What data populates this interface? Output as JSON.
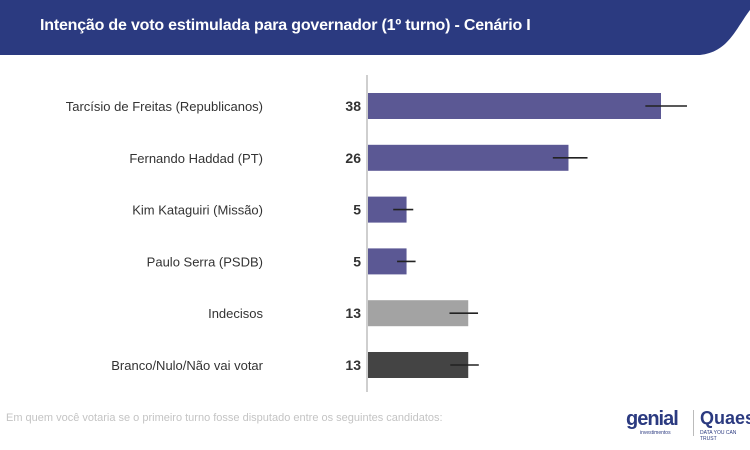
{
  "header": {
    "title": "Intenção de voto estimulada para governador (1º turno) - Cenário I",
    "color": "#2b3a80"
  },
  "footer": {
    "question": "Em quem você votaria se o primeiro turno fosse disputado entre os seguintes candidatos:"
  },
  "logos": {
    "genial": "genial",
    "genial_sub": "investimentos",
    "quaest": "Quaest",
    "quaest_sub": "DATA YOU CAN TRUST"
  },
  "chart_data": {
    "type": "bar",
    "orientation": "horizontal",
    "title": "",
    "xlabel": "",
    "ylabel": "",
    "xlim": [
      0,
      38
    ],
    "grid": false,
    "categories": [
      "Tarcísio de Freitas (Republicanos)",
      "Fernando Haddad (PT)",
      "Kim Kataguiri (Missão)",
      "Paulo Serra (PSDB)",
      "Indecisos",
      "Branco/Nulo/Não vai votar"
    ],
    "values": [
      38,
      26,
      5,
      5,
      13,
      13
    ],
    "error_low": [
      36.1,
      24.1,
      3.4,
      3.9,
      10.7,
      10.8
    ],
    "error_high": [
      41.5,
      28.6,
      6.0,
      6.3,
      14.4,
      14.5
    ],
    "colors": [
      "#5b5894",
      "#5b5894",
      "#5b5894",
      "#5b5894",
      "#a3a3a3",
      "#444444"
    ]
  }
}
